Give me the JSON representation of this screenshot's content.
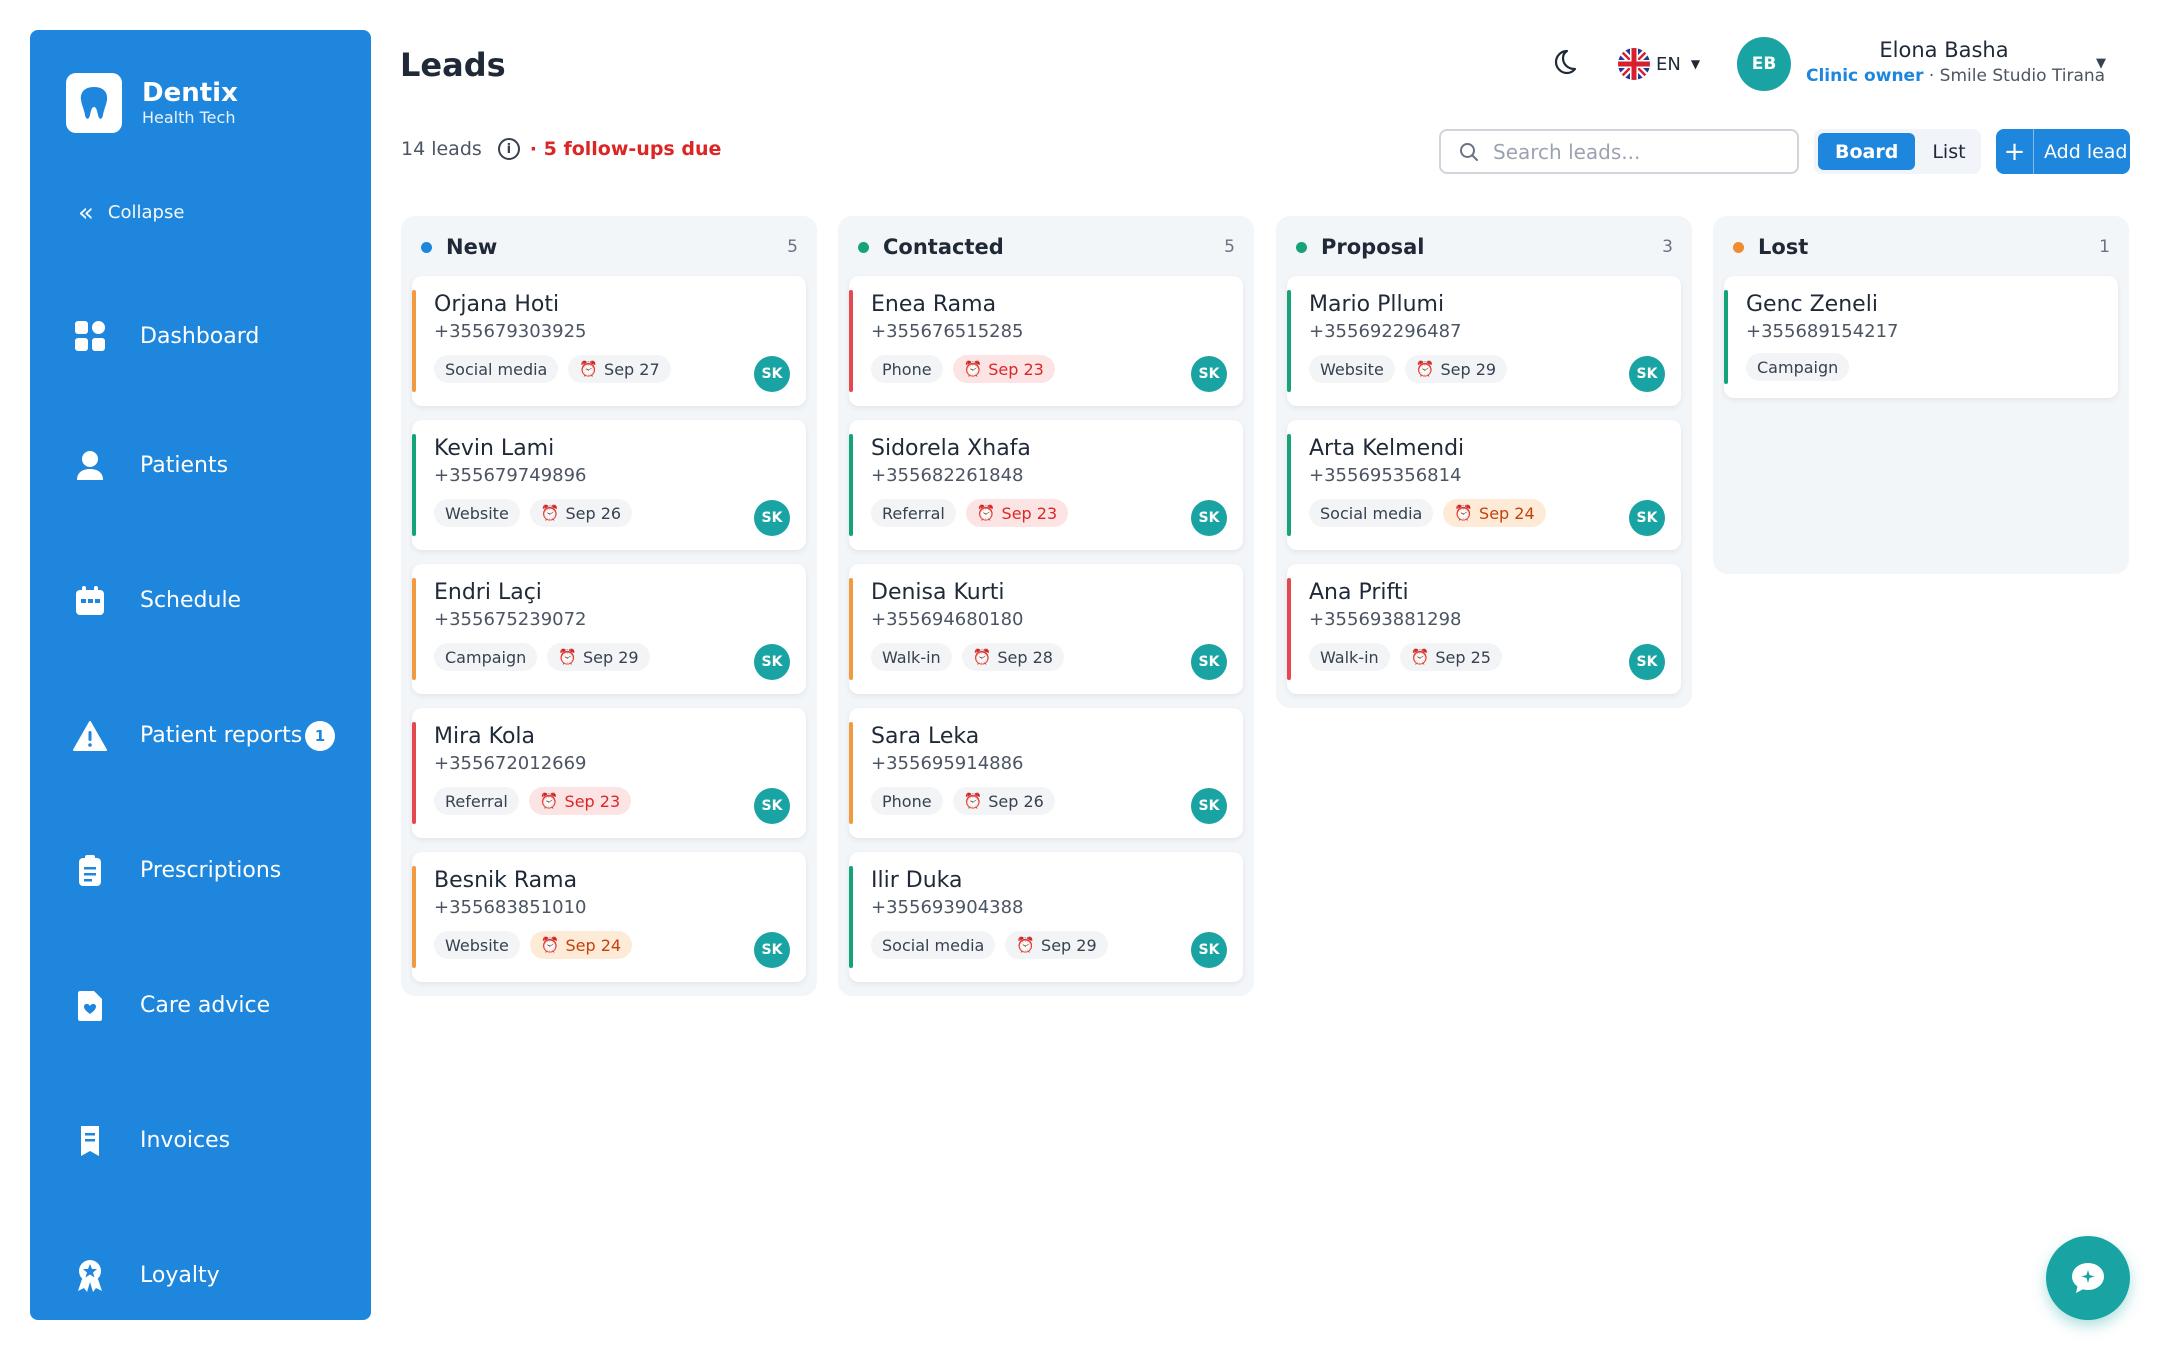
{
  "brand": {
    "name": "Dentix",
    "sub": "Health Tech"
  },
  "sidebar": {
    "collapse_label": "Collapse",
    "items": [
      {
        "label": "Dashboard",
        "icon": "dashboard-icon"
      },
      {
        "label": "Patients",
        "icon": "user-icon"
      },
      {
        "label": "Schedule",
        "icon": "calendar-icon"
      },
      {
        "label": "Patient reports",
        "icon": "warning-icon",
        "badge": "1"
      },
      {
        "label": "Prescriptions",
        "icon": "clipboard-icon"
      },
      {
        "label": "Care advice",
        "icon": "care-doc-icon"
      },
      {
        "label": "Invoices",
        "icon": "receipt-icon"
      },
      {
        "label": "Loyalty",
        "icon": "award-icon"
      }
    ]
  },
  "header": {
    "title": "Leads",
    "language": "EN",
    "user": {
      "initials": "EB",
      "name": "Elona Basha",
      "role": "Clinic owner",
      "clinic": "· Smile Studio Tirana"
    }
  },
  "toolbar": {
    "leads_count": "14 leads",
    "follow_ups": "· 5 follow-ups due",
    "search_placeholder": "Search leads...",
    "view_board": "Board",
    "view_list": "List",
    "add_lead": "Add lead"
  },
  "colors": {
    "accent": "#1e86dc",
    "teal": "#1aa3a3",
    "new": "#1e86dc",
    "contacted": "#16a37a",
    "proposal": "#16a37a",
    "lost": "#f08c2e",
    "bar_orange": "#f29a3f",
    "bar_red": "#e5484d",
    "bar_green": "#16a37a"
  },
  "columns": [
    {
      "title": "New",
      "count": "5",
      "cards": [
        {
          "name": "Orjana Hoti",
          "phone": "+355679303925",
          "source": "Social media",
          "due": "Sep 27",
          "due_state": "normal",
          "bar": "orange",
          "owner": "SK"
        },
        {
          "name": "Kevin Lami",
          "phone": "+355679749896",
          "source": "Website",
          "due": "Sep 26",
          "due_state": "normal",
          "bar": "green",
          "owner": "SK"
        },
        {
          "name": "Endri Laçi",
          "phone": "+355675239072",
          "source": "Campaign",
          "due": "Sep 29",
          "due_state": "normal",
          "bar": "orange",
          "owner": "SK"
        },
        {
          "name": "Mira Kola",
          "phone": "+355672012669",
          "source": "Referral",
          "due": "Sep 23",
          "due_state": "overdue",
          "bar": "red",
          "owner": "SK"
        },
        {
          "name": "Besnik Rama",
          "phone": "+355683851010",
          "source": "Website",
          "due": "Sep 24",
          "due_state": "soon",
          "bar": "orange",
          "owner": "SK"
        }
      ]
    },
    {
      "title": "Contacted",
      "count": "5",
      "cards": [
        {
          "name": "Enea Rama",
          "phone": "+355676515285",
          "source": "Phone",
          "due": "Sep 23",
          "due_state": "overdue",
          "bar": "red",
          "owner": "SK"
        },
        {
          "name": "Sidorela Xhafa",
          "phone": "+355682261848",
          "source": "Referral",
          "due": "Sep 23",
          "due_state": "overdue",
          "bar": "green",
          "owner": "SK"
        },
        {
          "name": "Denisa Kurti",
          "phone": "+355694680180",
          "source": "Walk-in",
          "due": "Sep 28",
          "due_state": "normal",
          "bar": "orange",
          "owner": "SK"
        },
        {
          "name": "Sara Leka",
          "phone": "+355695914886",
          "source": "Phone",
          "due": "Sep 26",
          "due_state": "normal",
          "bar": "orange",
          "owner": "SK"
        },
        {
          "name": "Ilir Duka",
          "phone": "+355693904388",
          "source": "Social media",
          "due": "Sep 29",
          "due_state": "normal",
          "bar": "green",
          "owner": "SK"
        }
      ]
    },
    {
      "title": "Proposal",
      "count": "3",
      "cards": [
        {
          "name": "Mario Pllumi",
          "phone": "+355692296487",
          "source": "Website",
          "due": "Sep 29",
          "due_state": "normal",
          "bar": "green",
          "owner": "SK"
        },
        {
          "name": "Arta Kelmendi",
          "phone": "+355695356814",
          "source": "Social media",
          "due": "Sep 24",
          "due_state": "soon",
          "bar": "green",
          "owner": "SK"
        },
        {
          "name": "Ana Prifti",
          "phone": "+355693881298",
          "source": "Walk-in",
          "due": "Sep 25",
          "due_state": "normal",
          "bar": "red",
          "owner": "SK"
        }
      ]
    },
    {
      "title": "Lost",
      "count": "1",
      "cards": [
        {
          "name": "Genc Zeneli",
          "phone": "+355689154217",
          "source": "Campaign",
          "due": "",
          "due_state": "none",
          "bar": "green",
          "owner": ""
        }
      ]
    }
  ]
}
